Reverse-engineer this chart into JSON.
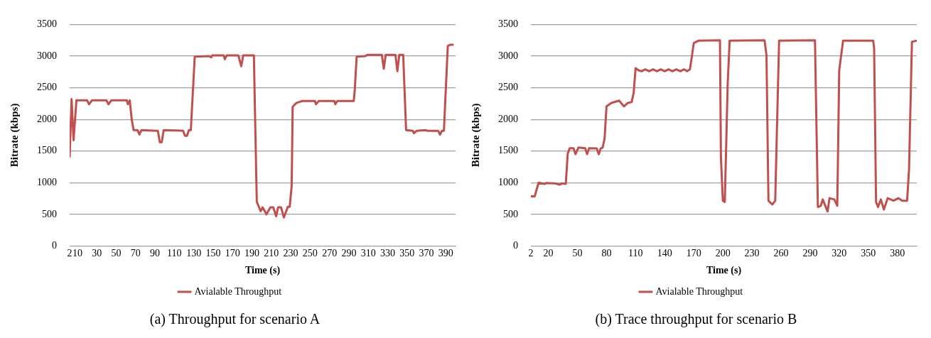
{
  "chart_data": [
    {
      "type": "line",
      "title": "(a) Throughput for scenario A",
      "xlabel": "Time (s)",
      "ylabel": "Bitrate (kbps)",
      "xlim": [
        2,
        400
      ],
      "xticks": [
        2,
        10,
        30,
        50,
        70,
        90,
        110,
        130,
        150,
        170,
        190,
        210,
        230,
        250,
        270,
        290,
        310,
        330,
        350,
        370,
        390
      ],
      "ylim": [
        0,
        3500
      ],
      "yticks": [
        0,
        500,
        1000,
        1500,
        2000,
        2500,
        3000,
        3500
      ],
      "grid": "y",
      "legend": "bottom",
      "marker": "none",
      "line_style": "solid",
      "series": [
        {
          "name": "Avialable Throughput",
          "color": "#c0504d",
          "x": [
            2,
            4,
            6,
            9,
            20,
            22,
            25,
            40,
            42,
            45,
            61,
            62,
            64,
            66,
            68,
            72,
            74,
            76,
            93,
            95,
            97,
            99,
            119,
            121,
            123,
            125,
            127,
            131,
            146,
            148,
            149,
            161,
            162,
            164,
            176,
            179,
            181,
            192,
            195,
            199,
            201,
            205,
            209,
            212,
            215,
            217,
            220,
            223,
            227,
            229,
            231,
            232,
            236,
            242,
            255,
            256,
            259,
            275,
            276,
            278,
            295,
            296,
            298,
            307,
            309,
            324,
            326,
            328,
            338,
            340,
            342,
            346,
            349,
            356,
            357,
            360,
            369,
            371,
            382,
            384,
            386,
            388,
            392,
            395,
            398
          ],
          "values": [
            1400,
            2320,
            1670,
            2300,
            2300,
            2240,
            2300,
            2300,
            2240,
            2300,
            2300,
            2240,
            2300,
            2000,
            1830,
            1830,
            1760,
            1830,
            1820,
            1640,
            1640,
            1830,
            1820,
            1740,
            1740,
            1830,
            1830,
            2990,
            3000,
            2980,
            3010,
            3010,
            2950,
            3010,
            3010,
            2840,
            3010,
            3010,
            700,
            550,
            610,
            500,
            610,
            610,
            470,
            610,
            610,
            450,
            620,
            620,
            950,
            2200,
            2260,
            2290,
            2290,
            2240,
            2290,
            2290,
            2240,
            2290,
            2290,
            2450,
            2990,
            3000,
            3020,
            3020,
            2800,
            3020,
            3020,
            2760,
            3020,
            3020,
            1830,
            1820,
            1780,
            1820,
            1830,
            1820,
            1820,
            1760,
            1820,
            1820,
            3160,
            3180,
            3180
          ]
        }
      ]
    },
    {
      "type": "line",
      "title": "(b) Trace throughput for scenario B",
      "xlabel": "Time (s)",
      "ylabel": "Bitrate (kbps)",
      "xlim": [
        2,
        400
      ],
      "xticks": [
        2,
        20,
        50,
        80,
        110,
        140,
        170,
        200,
        230,
        260,
        290,
        320,
        350,
        380
      ],
      "ylim": [
        0,
        3500
      ],
      "yticks": [
        0,
        500,
        1000,
        1500,
        2000,
        2500,
        3000,
        3500
      ],
      "grid": "y",
      "legend": "bottom",
      "marker": "none",
      "line_style": "solid",
      "series": [
        {
          "name": "Avialable Throughput",
          "color": "#c0504d",
          "x": [
            2,
            6,
            10,
            16,
            18,
            26,
            32,
            34,
            38,
            40,
            42,
            46,
            48,
            51,
            58,
            60,
            62,
            70,
            72,
            74,
            76,
            78,
            80,
            85,
            93,
            98,
            102,
            106,
            108,
            110,
            113,
            116,
            120,
            124,
            128,
            132,
            136,
            140,
            144,
            148,
            152,
            156,
            160,
            163,
            166,
            168,
            170,
            175,
            197,
            198,
            200,
            202,
            205,
            207,
            243,
            245,
            247,
            251,
            254,
            256,
            258,
            295,
            298,
            301,
            303,
            308,
            310,
            315,
            318,
            320,
            324,
            355,
            356,
            358,
            360,
            363,
            366,
            370,
            376,
            381,
            385,
            390,
            392,
            395,
            400
          ],
          "values": [
            785,
            785,
            1000,
            980,
            995,
            990,
            970,
            990,
            980,
            1460,
            1545,
            1545,
            1450,
            1555,
            1545,
            1450,
            1545,
            1540,
            1450,
            1540,
            1555,
            1695,
            2205,
            2260,
            2295,
            2205,
            2260,
            2275,
            2420,
            2810,
            2775,
            2760,
            2790,
            2760,
            2790,
            2760,
            2790,
            2760,
            2790,
            2760,
            2790,
            2760,
            2790,
            2760,
            2790,
            2990,
            3205,
            3245,
            3250,
            1400,
            715,
            695,
            2575,
            3245,
            3250,
            3010,
            715,
            655,
            715,
            1990,
            3245,
            3250,
            615,
            635,
            735,
            545,
            755,
            735,
            635,
            2775,
            3245,
            3245,
            3125,
            695,
            615,
            735,
            575,
            755,
            715,
            755,
            715,
            715,
            1205,
            3225,
            3245
          ]
        }
      ]
    }
  ]
}
